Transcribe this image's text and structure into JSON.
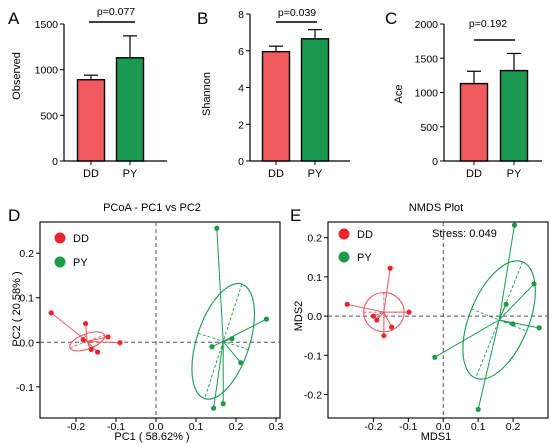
{
  "colors": {
    "dd": "#f05a5e",
    "py": "#1a9a50",
    "dd_point": "#e8262b",
    "py_point": "#1e9a4a"
  },
  "chart_data": [
    {
      "type": "bar",
      "panel": "A",
      "ylabel": "Observed",
      "categories": [
        "DD",
        "PY"
      ],
      "values": [
        890,
        1130
      ],
      "errors": [
        50,
        240
      ],
      "ylim": [
        0,
        1500
      ],
      "yticks": [
        0,
        500,
        1000,
        1500
      ],
      "yticklabels": [
        "0",
        "500",
        "1000",
        "1500"
      ],
      "pvalue": "p=0.077"
    },
    {
      "type": "bar",
      "panel": "B",
      "ylabel": "Shannon",
      "categories": [
        "DD",
        "PY"
      ],
      "values": [
        5.95,
        6.65
      ],
      "errors": [
        0.3,
        0.5
      ],
      "ylim": [
        0,
        8
      ],
      "yticks": [
        0,
        2,
        4,
        6,
        8
      ],
      "yticklabels": [
        "0",
        "2",
        "4",
        "6",
        "8"
      ],
      "pvalue": "p=0.039"
    },
    {
      "type": "bar",
      "panel": "C",
      "ylabel": "Ace",
      "categories": [
        "DD",
        "PY"
      ],
      "values": [
        1130,
        1320
      ],
      "errors": [
        180,
        250
      ],
      "ylim": [
        0,
        2000
      ],
      "yticks": [
        0,
        500,
        1000,
        1500,
        2000
      ],
      "yticklabels": [
        "0",
        "500",
        "1000",
        "1500",
        "2000"
      ],
      "pvalue": "p=0.192"
    },
    {
      "type": "scatter",
      "panel": "D",
      "title": "PCoA - PC1 vs PC2",
      "xlabel": "PC1 ( 58.62% )",
      "ylabel": "PC2 ( 20.58% )",
      "xlim": [
        -0.29,
        0.31
      ],
      "ylim": [
        -0.17,
        0.27
      ],
      "xticks": [
        -0.2,
        -0.1,
        0.0,
        0.1,
        0.2,
        0.3
      ],
      "xticklabels": [
        "-0.2",
        "-0.1",
        "0.0",
        "0.1",
        "0.2",
        "0.3"
      ],
      "yticks": [
        -0.1,
        0.0,
        0.1,
        0.2
      ],
      "yticklabels": [
        "-0.1",
        "0.0",
        "0.1",
        "0.2"
      ],
      "legend": [
        "DD",
        "PY"
      ],
      "legend_position": "top-left",
      "series": [
        {
          "name": "DD",
          "centroid": [
            -0.172,
            0.002
          ],
          "points": [
            [
              -0.262,
              0.066
            ],
            [
              -0.176,
              0.042
            ],
            [
              -0.162,
              -0.016
            ],
            [
              -0.146,
              -0.022
            ],
            [
              -0.12,
              0.012
            ],
            [
              -0.182,
              0.006
            ],
            [
              -0.09,
              -0.001
            ]
          ],
          "ellipse": {
            "rx": 0.046,
            "ry": 0.017,
            "angle_deg": -20
          }
        },
        {
          "name": "PY",
          "centroid": [
            0.168,
            0.002
          ],
          "points": [
            [
              0.144,
              -0.148
            ],
            [
              0.19,
              0.008
            ],
            [
              0.212,
              -0.046
            ],
            [
              0.276,
              0.052
            ],
            [
              0.152,
              0.256
            ],
            [
              0.168,
              -0.138
            ],
            [
              0.14,
              -0.01
            ]
          ],
          "ellipse": {
            "rx": 0.066,
            "ry": 0.135,
            "angle_deg": 18
          }
        }
      ]
    },
    {
      "type": "scatter",
      "panel": "E",
      "title": "NMDS Plot",
      "xlabel": "MDS1",
      "ylabel": "MDS2",
      "annotation": "Stress:  0.049",
      "xlim": [
        -0.33,
        0.3
      ],
      "ylim": [
        -0.26,
        0.24
      ],
      "xticks": [
        -0.2,
        -0.1,
        0.0,
        0.1,
        0.2
      ],
      "xticklabels": [
        "-0.2",
        "-0.1",
        "0.0",
        "0.1",
        "0.2"
      ],
      "yticks": [
        -0.2,
        -0.1,
        0.0,
        0.1,
        0.2
      ],
      "yticklabels": [
        "-0.2",
        "-0.1",
        "0.0",
        "0.1",
        "0.2"
      ],
      "legend": [
        "DD",
        "PY"
      ],
      "legend_position": "top-left",
      "series": [
        {
          "name": "DD",
          "centroid": [
            -0.17,
            0.01
          ],
          "points": [
            [
              -0.152,
              0.122
            ],
            [
              -0.275,
              0.03
            ],
            [
              -0.17,
              -0.05
            ],
            [
              -0.148,
              -0.028
            ],
            [
              -0.098,
              0.01
            ],
            [
              -0.19,
              -0.01
            ],
            [
              -0.2,
              0.0
            ]
          ],
          "ellipse": {
            "rx": 0.058,
            "ry": 0.05,
            "angle_deg": 0
          }
        },
        {
          "name": "PY",
          "centroid": [
            0.16,
            -0.01
          ],
          "points": [
            [
              0.204,
              0.232
            ],
            [
              0.26,
              0.082
            ],
            [
              -0.024,
              -0.105
            ],
            [
              0.275,
              -0.03
            ],
            [
              0.1,
              -0.238
            ],
            [
              0.2,
              -0.02
            ],
            [
              0.18,
              0.03
            ]
          ],
          "ellipse": {
            "rx": 0.085,
            "ry": 0.16,
            "angle_deg": 22
          }
        }
      ]
    }
  ]
}
